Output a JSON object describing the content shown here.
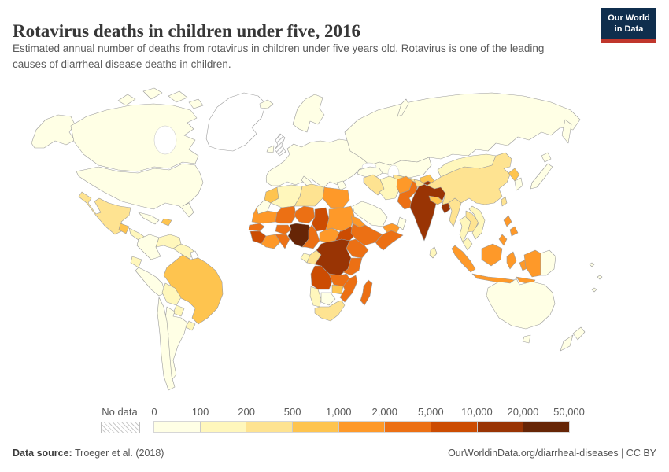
{
  "header": {
    "title": "Rotavirus deaths in children under five, 2016",
    "subtitle": "Estimated annual number of deaths from rotavirus in children under five years old. Rotavirus is one of the leading causes of diarrheal disease deaths in children.",
    "logo": {
      "line1": "Our World",
      "line2": "in Data",
      "bg": "#0f2e4d",
      "accent": "#c0362c"
    }
  },
  "legend": {
    "no_data_label": "No data",
    "ticks": [
      "0",
      "100",
      "200",
      "500",
      "1,000",
      "2,000",
      "5,000",
      "10,000",
      "20,000",
      "50,000"
    ],
    "bin_colors": [
      "#ffffe5",
      "#fff7bc",
      "#fee391",
      "#fec44f",
      "#fe9929",
      "#ec7014",
      "#cc4c02",
      "#993404",
      "#662506"
    ]
  },
  "footer": {
    "source_label": "Data source:",
    "source_value": " Troeger et al. (2018)",
    "right_text": "OurWorldinData.org/diarrheal-diseases | CC BY"
  },
  "chart_data": {
    "type": "choropleth-map",
    "title": "Rotavirus deaths in children under five, 2016",
    "unit": "deaths",
    "scale": "YlOrBr, 9 bins",
    "bin_edges": [
      0,
      100,
      200,
      500,
      1000,
      2000,
      5000,
      10000,
      20000,
      50000
    ],
    "legend_position": "bottom",
    "regions_by_bin_index": {
      "note": "0 = 0-100 deaths ... 8 = 20,000-50,000 deaths; nodata = hatched; none = blank"
    }
  },
  "map": {
    "border_color": "#9c9c9c",
    "no_data_fill": "#ffffff",
    "regions": {
      "alaska": 0,
      "canada": 0,
      "arctic-islands": 0,
      "greenland": "none",
      "usa": 0,
      "mexico": 2,
      "guatemala": 3,
      "central-america": 1,
      "cuba": 0,
      "hispaniola": 3,
      "colombia": 0,
      "venezuela": 1,
      "guyanas": 1,
      "french-guiana": "none",
      "ecuador": 1,
      "peru": 0,
      "brazil": 3,
      "bolivia": 1,
      "paraguay": 1,
      "chile": 0,
      "argentina": 0,
      "uruguay": 1,
      "iceland": 0,
      "uk": "nodata",
      "ireland": 0,
      "scandinavia": 0,
      "europe": 0,
      "italy": 0,
      "greece": 0,
      "russia": 0,
      "kazakhstan": 0,
      "central-asia": 2,
      "kyrgyz-tajik": 3,
      "turkey": 0,
      "syria-iraq": 2,
      "iran": 1,
      "saudi-arabia": 0,
      "yemen": 4,
      "oman": 0,
      "afghanistan": 4,
      "pakistan": 5,
      "india": 7,
      "nepal": 3,
      "bangladesh": 7,
      "sri-lanka": 1,
      "morocco": 3,
      "western-sahara": 0,
      "algeria": 1,
      "libya": 2,
      "egypt": 4,
      "mauritania": 4,
      "mali": 5,
      "niger": 5,
      "chad": 6,
      "sudan": 4,
      "eritrea": 4,
      "senegal": 5,
      "guinea": 6,
      "liberia-ivory-coast": 4,
      "burkina-faso": 5,
      "ghana": 5,
      "nigeria": 8,
      "cameroon": 5,
      "central-african-republic": 4,
      "south-sudan": 6,
      "ethiopia": 5,
      "somalia": 5,
      "uganda-kenya": 5,
      "gabon": 1,
      "congo": 2,
      "drc": 7,
      "tanzania": 5,
      "angola": 6,
      "zambia": 5,
      "mozambique": 5,
      "zimbabwe": 3,
      "namibia": 1,
      "botswana": 0,
      "south-africa": 2,
      "madagascar": 5,
      "china": 2,
      "mongolia": 1,
      "north-korea": 3,
      "south-korea": 0,
      "japan": 0,
      "taiwan": 2,
      "myanmar": 2,
      "thailand": 1,
      "laos-cambodia": 2,
      "vietnam": 1,
      "malaysia": 1,
      "philippines": 4,
      "indonesia": 4,
      "west-papua": 4,
      "papua-new-guinea": 0,
      "australia": 0,
      "tasmania": 0,
      "new-zealand": 0,
      "pacific-islands": 0
    }
  }
}
